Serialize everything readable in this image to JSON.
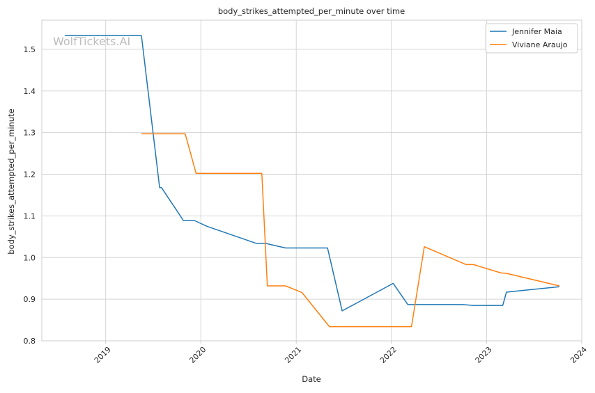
{
  "chart_data": {
    "type": "line",
    "title": "body_strikes_attempted_per_minute over time",
    "xlabel": "Date",
    "ylabel": "body_strikes_attempted_per_minute",
    "watermark": "WolfTickets.AI",
    "xlim": [
      "2018-05-01",
      "2024-01-01"
    ],
    "ylim": [
      0.8,
      1.57
    ],
    "x_ticks": [
      "2019",
      "2020",
      "2021",
      "2022",
      "2023",
      "2024"
    ],
    "y_ticks": [
      "0.8",
      "0.9",
      "1.0",
      "1.1",
      "1.2",
      "1.3",
      "1.4",
      "1.5"
    ],
    "grid": true,
    "legend_position": "top-right",
    "series": [
      {
        "name": "Jennifer Maia",
        "color": "#1f77b4",
        "points": [
          {
            "x": "2018-07-28",
            "y": 1.533
          },
          {
            "x": "2019-05-18",
            "y": 1.533
          },
          {
            "x": "2019-07-27",
            "y": 1.168
          },
          {
            "x": "2019-08-03",
            "y": 1.168
          },
          {
            "x": "2019-10-26",
            "y": 1.089
          },
          {
            "x": "2019-12-07",
            "y": 1.089
          },
          {
            "x": "2020-01-25",
            "y": 1.075
          },
          {
            "x": "2020-08-01",
            "y": 1.034
          },
          {
            "x": "2020-09-05",
            "y": 1.034
          },
          {
            "x": "2020-11-21",
            "y": 1.023
          },
          {
            "x": "2021-05-01",
            "y": 1.023
          },
          {
            "x": "2021-06-26",
            "y": 0.872
          },
          {
            "x": "2022-01-08",
            "y": 0.938
          },
          {
            "x": "2022-03-05",
            "y": 0.887
          },
          {
            "x": "2022-10-01",
            "y": 0.887
          },
          {
            "x": "2022-11-12",
            "y": 0.885
          },
          {
            "x": "2023-03-04",
            "y": 0.885
          },
          {
            "x": "2023-03-18",
            "y": 0.917
          },
          {
            "x": "2023-10-07",
            "y": 0.93
          }
        ]
      },
      {
        "name": "Viviane Araujo",
        "color": "#ff7f0e",
        "points": [
          {
            "x": "2019-05-18",
            "y": 1.297
          },
          {
            "x": "2019-11-02",
            "y": 1.297
          },
          {
            "x": "2019-12-14",
            "y": 1.202
          },
          {
            "x": "2020-08-22",
            "y": 1.202
          },
          {
            "x": "2020-09-12",
            "y": 0.932
          },
          {
            "x": "2020-11-21",
            "y": 0.932
          },
          {
            "x": "2021-01-23",
            "y": 0.916
          },
          {
            "x": "2021-05-08",
            "y": 0.834
          },
          {
            "x": "2022-03-19",
            "y": 0.834
          },
          {
            "x": "2022-05-07",
            "y": 1.026
          },
          {
            "x": "2022-10-15",
            "y": 0.983
          },
          {
            "x": "2022-11-12",
            "y": 0.983
          },
          {
            "x": "2023-02-25",
            "y": 0.963
          },
          {
            "x": "2023-03-18",
            "y": 0.962
          },
          {
            "x": "2023-10-07",
            "y": 0.932
          }
        ]
      }
    ]
  }
}
